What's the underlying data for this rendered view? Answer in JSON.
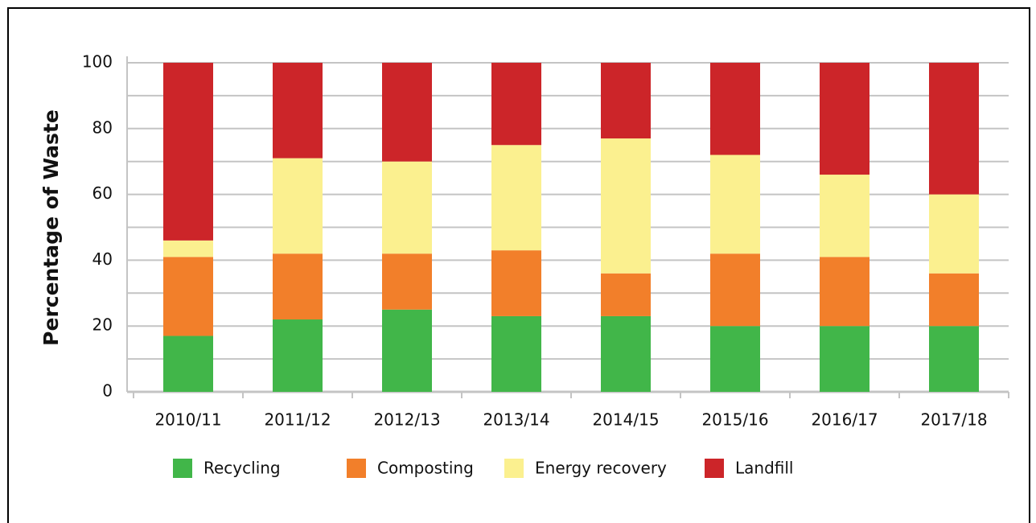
{
  "chart_data": {
    "type": "stacked_bar",
    "ylabel": "Percentage of Waste",
    "categories": [
      "2010/11",
      "2011/12",
      "2012/13",
      "2013/14",
      "2014/15",
      "2015/16",
      "2016/17",
      "2017/18"
    ],
    "series": [
      {
        "name": "Recycling",
        "color": "#41b649",
        "values": [
          17,
          22,
          25,
          23,
          23,
          20,
          20,
          20
        ]
      },
      {
        "name": "Composting",
        "color": "#f27f2a",
        "values": [
          24,
          20,
          17,
          20,
          13,
          22,
          21,
          16
        ]
      },
      {
        "name": "Energy recovery",
        "color": "#fbf08f",
        "values": [
          5,
          29,
          28,
          32,
          41,
          30,
          25,
          24
        ]
      },
      {
        "name": "Landfill",
        "color": "#cc2529",
        "values": [
          54,
          29,
          30,
          25,
          23,
          28,
          34,
          40
        ]
      }
    ],
    "ylim": [
      0,
      100
    ],
    "yticks": [
      0,
      20,
      40,
      60,
      80,
      100
    ],
    "minor_yticks": [
      10,
      30,
      50,
      70,
      90
    ],
    "grid": true,
    "legend": "bottom"
  }
}
